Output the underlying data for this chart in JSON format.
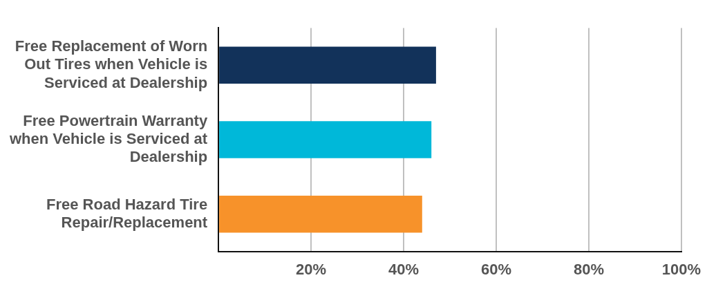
{
  "chart_data": {
    "type": "bar",
    "orientation": "horizontal",
    "categories": [
      "Free Replacement of Worn Out Tires when Vehicle is Serviced at Dealership",
      "Free Powertrain Warranty when Vehicle is Serviced at Dealership",
      "Free Road Hazard Tire Repair/Replacement"
    ],
    "values": [
      47,
      46,
      44
    ],
    "colors": [
      "#12325a",
      "#00b8d9",
      "#f7922a"
    ],
    "xlim": [
      0,
      100
    ],
    "xticks": [
      {
        "value": 0,
        "label": null
      },
      {
        "value": 20,
        "label": "20%"
      },
      {
        "value": 40,
        "label": "40%"
      },
      {
        "value": 60,
        "label": "60%"
      },
      {
        "value": 80,
        "label": "80%"
      },
      {
        "value": 100,
        "label": "100%"
      }
    ],
    "grid": "x",
    "legend": false
  }
}
